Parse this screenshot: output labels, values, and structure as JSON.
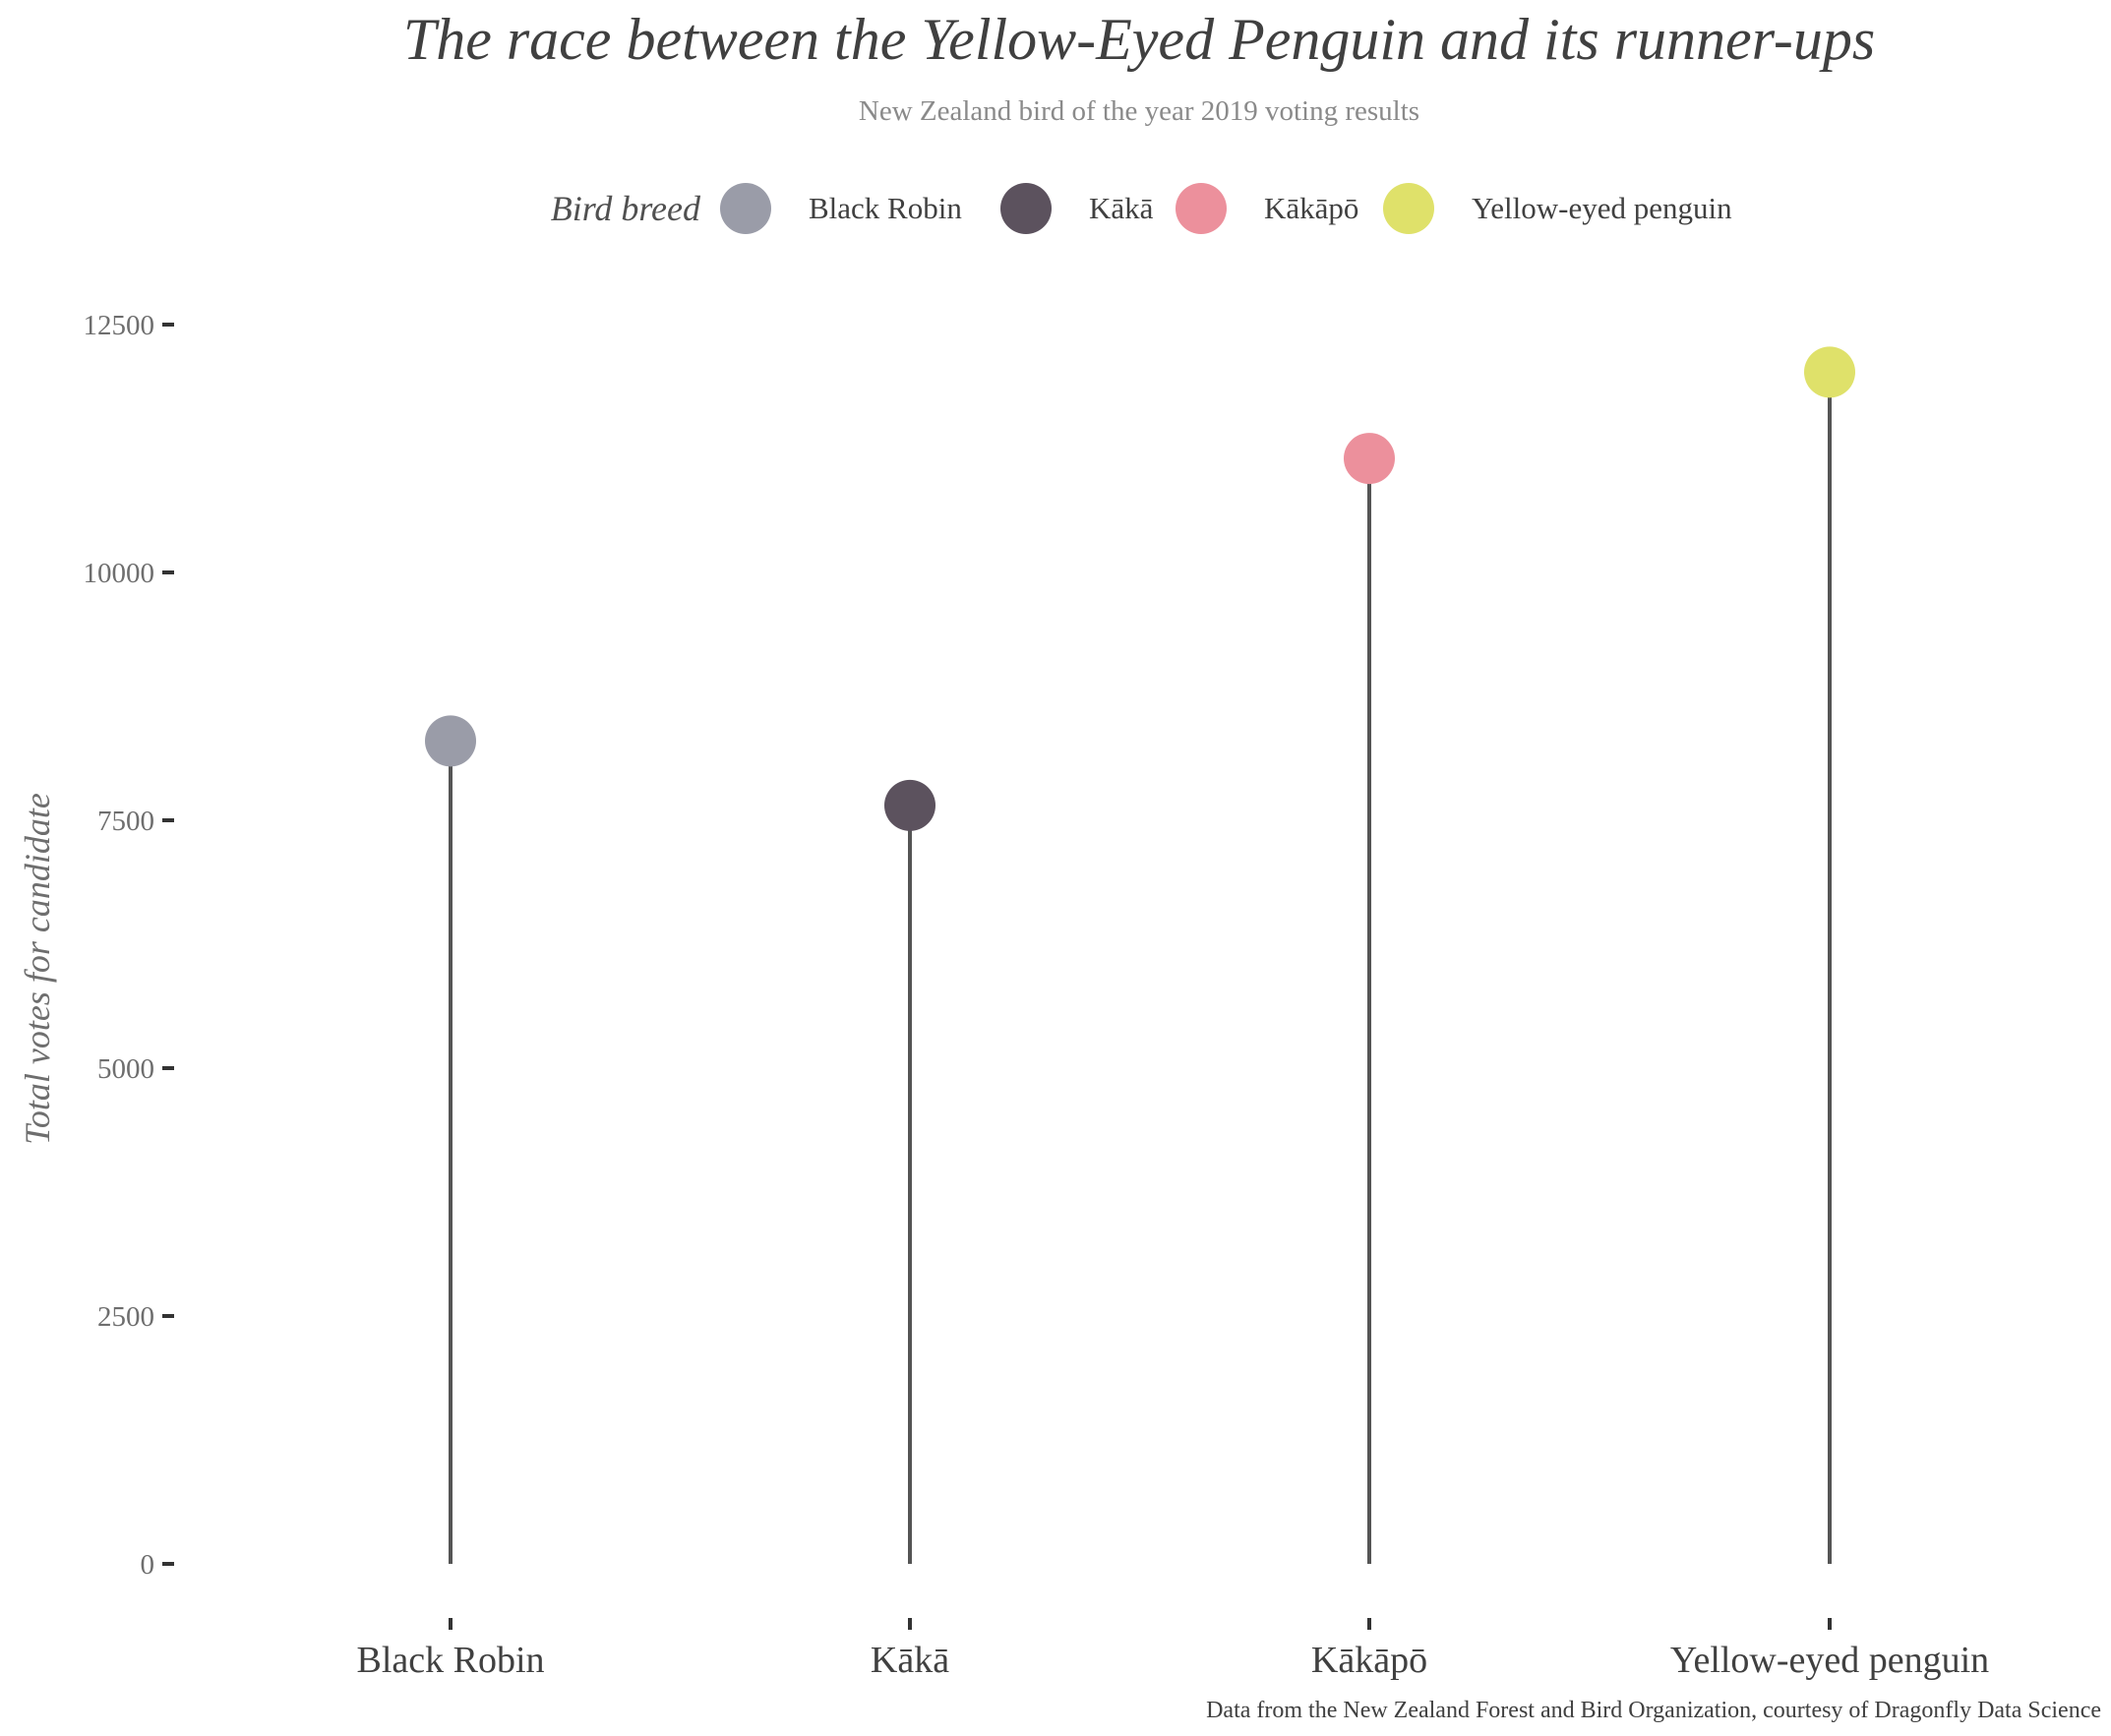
{
  "chart_data": {
    "type": "lollipop",
    "title": "The race between the Yellow-Eyed Penguin and its runner-ups",
    "subtitle": "New Zealand bird of the year 2019 voting results",
    "caption": "Data from the New Zealand Forest and Bird Organization, courtesy of Dragonfly Data Science",
    "legend_title": "Bird breed",
    "legend_position": "top",
    "ylabel": "Total votes for candidate",
    "xlabel": "",
    "ylim": [
      0,
      12500
    ],
    "yticks": [
      0,
      2500,
      5000,
      7500,
      10000,
      12500
    ],
    "grid": false,
    "categories": [
      "Black Robin",
      "Kākā",
      "Kākāpō",
      "Yellow-eyed penguin"
    ],
    "values": [
      8300,
      7650,
      11150,
      12020
    ],
    "colors": [
      "#9a9ca8",
      "#5c525e",
      "#ec909c",
      "#dfe16a"
    ],
    "stem_color": "#555555"
  }
}
